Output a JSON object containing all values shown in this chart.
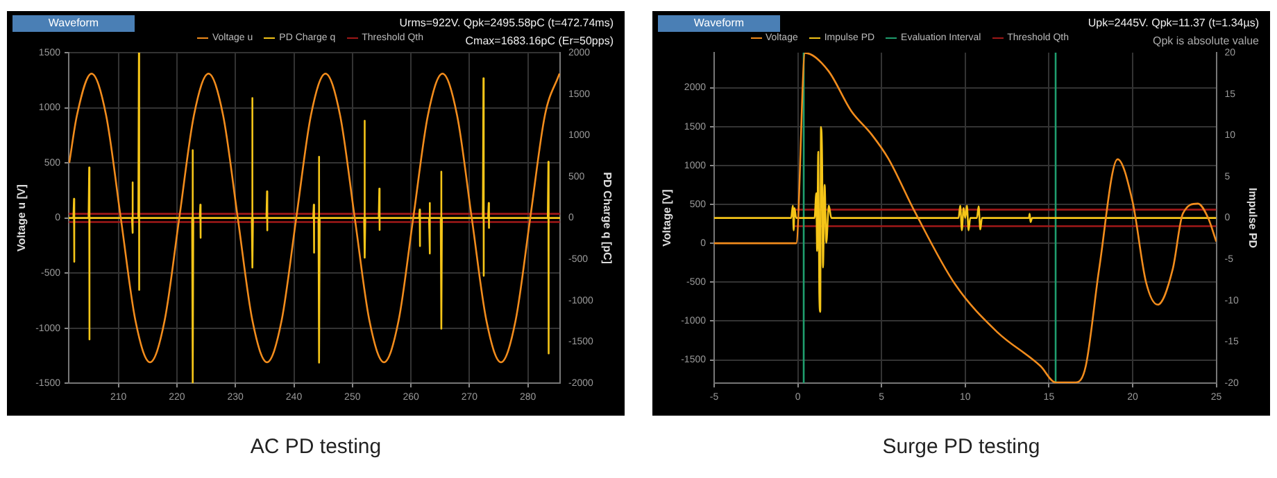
{
  "chart_data": [
    {
      "type": "line",
      "title": "AC PD testing",
      "xlabel": null,
      "ylabel": "Voltage u [V]",
      "y2label": "PD Charge q [pC]",
      "annotations": [
        "Waveform",
        "Urms=922V.  Qpk=2495.58pC (t=472.74ms)",
        "Cmax=1683.16pC (Er=50pps)"
      ],
      "xlim": [
        201.5,
        285.5
      ],
      "xticks": [
        210,
        220,
        230,
        240,
        250,
        260,
        270,
        280
      ],
      "ylim": [
        -1500,
        1500
      ],
      "yticks": [
        -1500,
        -1000,
        -500,
        0,
        500,
        1000,
        1500
      ],
      "y2lim": [
        -2000,
        2000
      ],
      "y2ticks": [
        -2000,
        -1500,
        -1000,
        -500,
        0,
        500,
        1000,
        1500,
        2000
      ],
      "grid": true,
      "legend": "top",
      "series": [
        {
          "name": "Voltage u",
          "color": "#f28c1c",
          "x": [
            201.6,
            202.9,
            205.4,
            207.9,
            210.4,
            212.9,
            215.4,
            217.9,
            220.4,
            222.9,
            225.4,
            227.9,
            230.4,
            232.9,
            235.4,
            237.9,
            240.4,
            242.9,
            245.4,
            247.9,
            250.4,
            252.9,
            255.4,
            257.9,
            260.4,
            262.9,
            265.4,
            267.9,
            270.4,
            272.9,
            275.4,
            277.9,
            280.4,
            282.9,
            285.4
          ],
          "values": [
            500,
            930,
            1310,
            930,
            0,
            -930,
            -1310,
            -930,
            0,
            930,
            1310,
            930,
            0,
            -930,
            -1310,
            -930,
            0,
            930,
            1310,
            930,
            0,
            -930,
            -1310,
            -930,
            0,
            930,
            1310,
            930,
            0,
            -930,
            -1310,
            -930,
            0,
            930,
            1310
          ]
        },
        {
          "name": "PD Charge q",
          "color": "#f5c518",
          "axis": "y2",
          "x": [
            201.5,
            202.3,
            202.4,
            202.4,
            202.5,
            204.9,
            205.0,
            205.0,
            205.1,
            212.3,
            212.4,
            212.4,
            212.5,
            213.4,
            213.5,
            213.5,
            213.6,
            222.6,
            222.7,
            222.7,
            222.8,
            223.9,
            224.0,
            224.0,
            224.1,
            232.8,
            232.9,
            232.9,
            233.0,
            235.3,
            235.4,
            235.4,
            235.5,
            243.3,
            243.4,
            243.4,
            243.5,
            244.2,
            244.3,
            244.3,
            244.4,
            252.0,
            252.1,
            252.1,
            252.2,
            254.5,
            254.6,
            254.6,
            254.7,
            261.4,
            261.5,
            261.5,
            261.6,
            263.1,
            263.2,
            263.2,
            263.3,
            265.1,
            265.2,
            265.2,
            265.3,
            272.3,
            272.4,
            272.4,
            272.5,
            273.2,
            273.3,
            273.3,
            273.4,
            283.4,
            283.5,
            283.5,
            283.6,
            285.5
          ],
          "values": [
            0,
            0,
            230,
            -530,
            0,
            0,
            610,
            -1470,
            0,
            0,
            430,
            -180,
            0,
            0,
            2000,
            -870,
            0,
            0,
            820,
            -2000,
            0,
            0,
            160,
            -240,
            0,
            0,
            1450,
            -600,
            0,
            0,
            320,
            -150,
            0,
            0,
            160,
            -420,
            0,
            0,
            740,
            -1750,
            0,
            0,
            1175,
            -480,
            0,
            0,
            355,
            -145,
            0,
            0,
            100,
            -340,
            0,
            0,
            180,
            -430,
            0,
            0,
            560,
            -1340,
            0,
            0,
            1690,
            -700,
            0,
            0,
            180,
            -120,
            0,
            0,
            680,
            -1640,
            0,
            0
          ]
        },
        {
          "name": "Threshold Qth",
          "color": "#a01818",
          "axis": "y2",
          "x": [
            201.5,
            285.5
          ],
          "values": [
            50,
            50
          ]
        },
        {
          "color": "#a01818",
          "axis": "y2",
          "x": [
            201.5,
            285.5
          ],
          "values": [
            -50,
            -50
          ]
        }
      ]
    },
    {
      "type": "line",
      "title": "Surge PD testing",
      "ylabel": "Voltage [V]",
      "y2label": "Impulse PD",
      "annotations": [
        "Waveform",
        "Upk=2445V.  Qpk=11.37 (t=1.34µs)",
        "Qpk is absolute value"
      ],
      "xlim": [
        -5,
        25
      ],
      "xticks": [
        -5,
        0,
        5,
        10,
        15,
        20,
        25
      ],
      "ylim": [
        -1800,
        2450
      ],
      "yticks": [
        -1500,
        -1000,
        -500,
        0,
        500,
        1000,
        1500,
        2000
      ],
      "y2lim": [
        -20,
        20
      ],
      "y2ticks": [
        -20,
        -15,
        -10,
        -5,
        0,
        5,
        10,
        15,
        20
      ],
      "grid": true,
      "legend": "top",
      "series": [
        {
          "name": "Voltage",
          "color": "#f28c1c",
          "x": [
            -5,
            -0.1,
            0.43,
            1.81,
            3.19,
            4.4,
            5.4,
            7.0,
            9.4,
            11.9,
            14.5,
            15.4,
            16.6,
            17.2,
            18.0,
            19.1,
            20.0,
            20.8,
            21.5,
            22.4,
            23.0,
            23.9,
            24.5,
            25
          ],
          "values": [
            0,
            0,
            2445,
            2220,
            1700,
            1400,
            1090,
            400,
            -530,
            -1140,
            -1580,
            -1790,
            -1790,
            -1580,
            -330,
            1080,
            530,
            -500,
            -790,
            -330,
            380,
            510,
            330,
            20
          ]
        },
        {
          "name": "Impulse PD",
          "color": "#f5c518",
          "axis": "y2",
          "x": [
            -5,
            -0.4,
            -0.3,
            -0.25,
            -0.2,
            -0.1,
            1.0,
            1.1,
            1.15,
            1.22,
            1.28,
            1.34,
            1.38,
            1.45,
            1.5,
            1.6,
            1.7,
            1.85,
            2.0,
            9.6,
            9.7,
            9.8,
            9.9,
            10.0,
            10.1,
            10.2,
            10.3,
            10.7,
            10.8,
            10.9,
            11.0,
            13.8,
            13.85,
            13.9,
            14.0,
            25
          ],
          "values": [
            0,
            0,
            1.5,
            -1.5,
            1.2,
            0,
            0,
            3,
            -4,
            8,
            -9,
            -11.37,
            11,
            7,
            -6,
            4,
            -3,
            1.5,
            0,
            0,
            1.5,
            -1.5,
            1.2,
            0,
            1.5,
            -1.5,
            0,
            0,
            1.4,
            -1.4,
            0,
            0,
            0.5,
            -0.5,
            0,
            0
          ]
        },
        {
          "name": "Evaluation Interval",
          "color": "#1f9e6e",
          "x": [
            0.35,
            0.35
          ],
          "values": [
            -1800,
            2450
          ]
        },
        {
          "color": "#1f9e6e",
          "x": [
            15.4,
            15.4
          ],
          "values": [
            -1800,
            2450
          ]
        },
        {
          "name": "Threshold Qth",
          "color": "#a01818",
          "axis": "y2",
          "x": [
            -0.2,
            25
          ],
          "values": [
            1,
            1
          ]
        },
        {
          "color": "#a01818",
          "axis": "y2",
          "x": [
            -0.2,
            25
          ],
          "values": [
            -1,
            -1
          ]
        }
      ]
    }
  ]
}
